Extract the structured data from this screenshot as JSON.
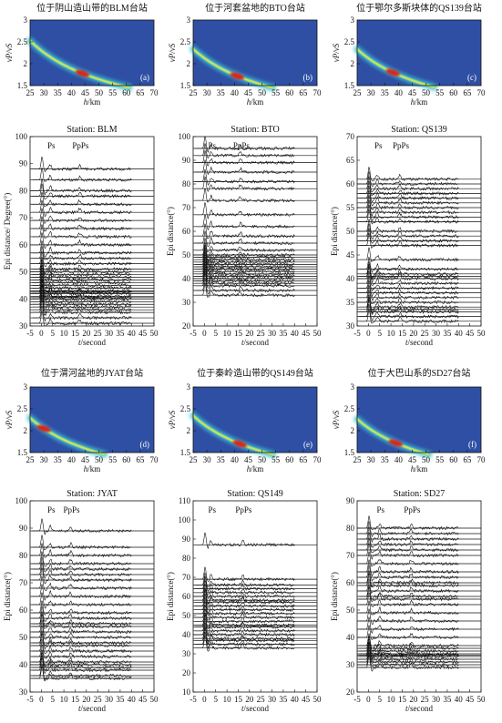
{
  "hk_panels": [
    {
      "title": "位于阴山造山带的BLM台站",
      "tag": "(a)",
      "xlabel_h": "h",
      "xlabel_unit": "/km",
      "ylabel": "νP/νS"
    },
    {
      "title": "位于河套盆地的BTO台站",
      "tag": "(b)",
      "xlabel_h": "h",
      "xlabel_unit": "/km",
      "ylabel": "νP/νS"
    },
    {
      "title": "位于鄂尔多斯块体的QS139台站",
      "tag": "(c)",
      "xlabel_h": "h",
      "xlabel_unit": "/km",
      "ylabel": "νP/νS"
    },
    {
      "title": "位于渭河盆地的JYAT台站",
      "tag": "(d)",
      "xlabel_h": "h",
      "xlabel_unit": "/km",
      "ylabel": "νP/νS"
    },
    {
      "title": "位于秦岭造山带的QS149台站",
      "tag": "(e)",
      "xlabel_h": "h",
      "xlabel_unit": "/km",
      "ylabel": "νP/νS"
    },
    {
      "title": "位于大巴山系的SD27台站",
      "tag": "(f)",
      "xlabel_h": "h",
      "xlabel_unit": "/km",
      "ylabel": "νP/νS"
    }
  ],
  "rf_panels": [
    {
      "title": "Station: BLM",
      "ylabel": "Epi distance/ Degree(°)",
      "xlabel_t": "t",
      "xlabel_unit": "/second",
      "phase1": "Ps",
      "phase2": "PpPs"
    },
    {
      "title": "Station: BTO",
      "ylabel": "Epi distance(°)",
      "xlabel_t": "t",
      "xlabel_unit": "/second",
      "phase1": "Ps",
      "phase2": "PpPs"
    },
    {
      "title": "Station: QS139",
      "ylabel": "Epi distance(°)",
      "xlabel_t": "t",
      "xlabel_unit": "/second",
      "phase1": "Ps",
      "phase2": "PpPs"
    },
    {
      "title": "Station: JYAT",
      "ylabel": "Epi distance(°)",
      "xlabel_t": "t",
      "xlabel_unit": "/second",
      "phase1": "Ps",
      "phase2": "PpPs"
    },
    {
      "title": "Station: QS149",
      "ylabel": "Epi distance(°)",
      "xlabel_t": "t",
      "xlabel_unit": "/second",
      "phase1": "Ps",
      "phase2": "PpPs"
    },
    {
      "title": "Station: SD27",
      "ylabel": "Epi distance(°)",
      "xlabel_t": "t",
      "xlabel_unit": "/second",
      "phase1": "Ps",
      "phase2": "PpPs"
    }
  ],
  "chart_data": [
    {
      "type": "heatmap",
      "panel": "(a)",
      "xlim": [
        25,
        70
      ],
      "ylim": [
        1.5,
        3
      ],
      "xticks": [
        25,
        30,
        35,
        40,
        45,
        50,
        55,
        60,
        65,
        70
      ],
      "yticks": [
        1.5,
        2,
        2.5,
        3
      ],
      "peak": [
        44,
        1.78
      ],
      "colors": {
        "background": "#2e4fa3",
        "ridge": "#3fc0d8",
        "core": "#f0e23a",
        "peak": "#d6281d"
      }
    },
    {
      "type": "heatmap",
      "panel": "(b)",
      "xlim": [
        25,
        70
      ],
      "ylim": [
        1.5,
        3
      ],
      "xticks": [
        25,
        30,
        35,
        40,
        45,
        50,
        55,
        60,
        65,
        70
      ],
      "yticks": [
        1.5,
        2,
        2.5,
        3
      ],
      "peak": [
        41,
        1.72
      ],
      "colors": {
        "background": "#2e4fa3",
        "ridge": "#3fc0d8",
        "core": "#f0e23a",
        "peak": "#d6281d"
      }
    },
    {
      "type": "heatmap",
      "panel": "(c)",
      "xlim": [
        25,
        70
      ],
      "ylim": [
        1.5,
        3
      ],
      "xticks": [
        25,
        30,
        35,
        40,
        45,
        50,
        55,
        60,
        65,
        70
      ],
      "yticks": [
        1.5,
        2,
        2.5,
        3
      ],
      "peak": [
        38,
        1.8
      ],
      "colors": {
        "background": "#2e4fa3",
        "ridge": "#3fc0d8",
        "core": "#f0e23a",
        "peak": "#d6281d"
      }
    },
    {
      "type": "heatmap",
      "panel": "(d)",
      "xlim": [
        25,
        70
      ],
      "ylim": [
        1.5,
        3
      ],
      "xticks": [
        25,
        30,
        35,
        40,
        45,
        50,
        55,
        60,
        65,
        70
      ],
      "yticks": [
        1.5,
        2,
        2.5,
        3
      ],
      "peak": [
        30,
        2.05
      ],
      "colors": {
        "background": "#2e4fa3",
        "ridge": "#3fc0d8",
        "core": "#f0e23a",
        "peak": "#d6281d"
      }
    },
    {
      "type": "heatmap",
      "panel": "(e)",
      "xlim": [
        25,
        70
      ],
      "ylim": [
        1.5,
        3
      ],
      "xticks": [
        25,
        30,
        35,
        40,
        45,
        50,
        55,
        60,
        65,
        70
      ],
      "yticks": [
        1.5,
        2,
        2.5,
        3
      ],
      "peak": [
        42,
        1.7
      ],
      "colors": {
        "background": "#2e4fa3",
        "ridge": "#3fc0d8",
        "core": "#f0e23a",
        "peak": "#d6281d"
      }
    },
    {
      "type": "heatmap",
      "panel": "(f)",
      "xlim": [
        25,
        70
      ],
      "ylim": [
        1.5,
        3
      ],
      "xticks": [
        25,
        30,
        35,
        40,
        45,
        50,
        55,
        60,
        65,
        70
      ],
      "yticks": [
        1.5,
        2,
        2.5,
        3
      ],
      "peak": [
        39,
        1.72
      ],
      "colors": {
        "background": "#2e4fa3",
        "ridge": "#3fc0d8",
        "core": "#f0e23a",
        "peak": "#d6281d"
      }
    },
    {
      "type": "line",
      "station": "BLM",
      "xlim": [
        -5,
        50
      ],
      "ylim": [
        30,
        100
      ],
      "xticks": [
        -5,
        0,
        5,
        10,
        15,
        20,
        25,
        30,
        35,
        40,
        45,
        50
      ],
      "yticks": [
        30,
        40,
        50,
        60,
        70,
        80,
        90,
        100
      ],
      "ps_time": 4,
      "ppps_time": 17,
      "distances": [
        31,
        33,
        35,
        36,
        37,
        38,
        39,
        40,
        40.5,
        41,
        42,
        42.5,
        43,
        44,
        45,
        46,
        47,
        48,
        49,
        50,
        51,
        53,
        55,
        57,
        60,
        63,
        66,
        69,
        72,
        75,
        78,
        80,
        84,
        88
      ]
    },
    {
      "type": "line",
      "station": "BTO",
      "xlim": [
        -5,
        50
      ],
      "ylim": [
        20,
        100
      ],
      "xticks": [
        -5,
        0,
        5,
        10,
        15,
        20,
        25,
        30,
        35,
        40,
        45,
        50
      ],
      "yticks": [
        20,
        30,
        40,
        50,
        60,
        70,
        80,
        90,
        100
      ],
      "ps_time": 3,
      "ppps_time": 16,
      "distances": [
        33,
        35,
        37,
        38,
        39,
        40,
        41,
        42,
        43,
        44,
        45,
        46,
        47,
        48,
        49,
        50,
        52,
        55,
        58,
        62,
        67,
        73,
        78,
        81,
        85,
        89,
        92,
        95
      ]
    },
    {
      "type": "line",
      "station": "QS139",
      "xlim": [
        -5,
        50
      ],
      "ylim": [
        30,
        70
      ],
      "xticks": [
        -5,
        0,
        5,
        10,
        15,
        20,
        25,
        30,
        35,
        40,
        45,
        50
      ],
      "yticks": [
        30,
        35,
        40,
        45,
        50,
        55,
        60,
        65,
        70
      ],
      "ps_time": 4,
      "ppps_time": 14,
      "distances": [
        31,
        32,
        33,
        33.5,
        34,
        35,
        36,
        37,
        38,
        39,
        40,
        40.5,
        41,
        42,
        44,
        47,
        48,
        49,
        50,
        52,
        53,
        54,
        55,
        56,
        57,
        58,
        59,
        60,
        61
      ]
    },
    {
      "type": "line",
      "station": "JYAT",
      "xlim": [
        -5,
        50
      ],
      "ylim": [
        30,
        100
      ],
      "xticks": [
        -5,
        0,
        5,
        10,
        15,
        20,
        25,
        30,
        35,
        40,
        45,
        50
      ],
      "yticks": [
        30,
        40,
        50,
        60,
        70,
        80,
        90,
        100
      ],
      "ps_time": 4,
      "ppps_time": 13,
      "distances": [
        35,
        36,
        38,
        39,
        40,
        41,
        43,
        45,
        47,
        48,
        50,
        52,
        54,
        55,
        57,
        59,
        62,
        65,
        68,
        71,
        73,
        75,
        77,
        80,
        83,
        89
      ]
    },
    {
      "type": "line",
      "station": "QS149",
      "xlim": [
        -5,
        50
      ],
      "ylim": [
        10,
        110
      ],
      "xticks": [
        -5,
        0,
        5,
        10,
        15,
        20,
        25,
        30,
        35,
        40,
        45,
        50
      ],
      "yticks": [
        10,
        20,
        30,
        40,
        50,
        60,
        70,
        80,
        90,
        100,
        110
      ],
      "ps_time": 3,
      "ppps_time": 17,
      "distances": [
        33,
        35,
        37,
        38,
        40,
        42,
        44,
        45,
        47,
        49,
        51,
        53,
        55,
        57,
        58,
        60,
        62,
        64,
        66,
        69,
        87
      ]
    },
    {
      "type": "line",
      "station": "SD27",
      "xlim": [
        -5,
        50
      ],
      "ylim": [
        20,
        90
      ],
      "xticks": [
        -5,
        0,
        5,
        10,
        15,
        20,
        25,
        30,
        35,
        40,
        45,
        50
      ],
      "yticks": [
        20,
        30,
        40,
        50,
        60,
        70,
        80,
        90
      ],
      "ps_time": 5,
      "ppps_time": 19,
      "distances": [
        29,
        30,
        31,
        32,
        33,
        33.5,
        34,
        35,
        36,
        37,
        40,
        43,
        46,
        49,
        52,
        54,
        55,
        57,
        59,
        60,
        62,
        64,
        67,
        70,
        72,
        74,
        76,
        78,
        80
      ]
    }
  ]
}
